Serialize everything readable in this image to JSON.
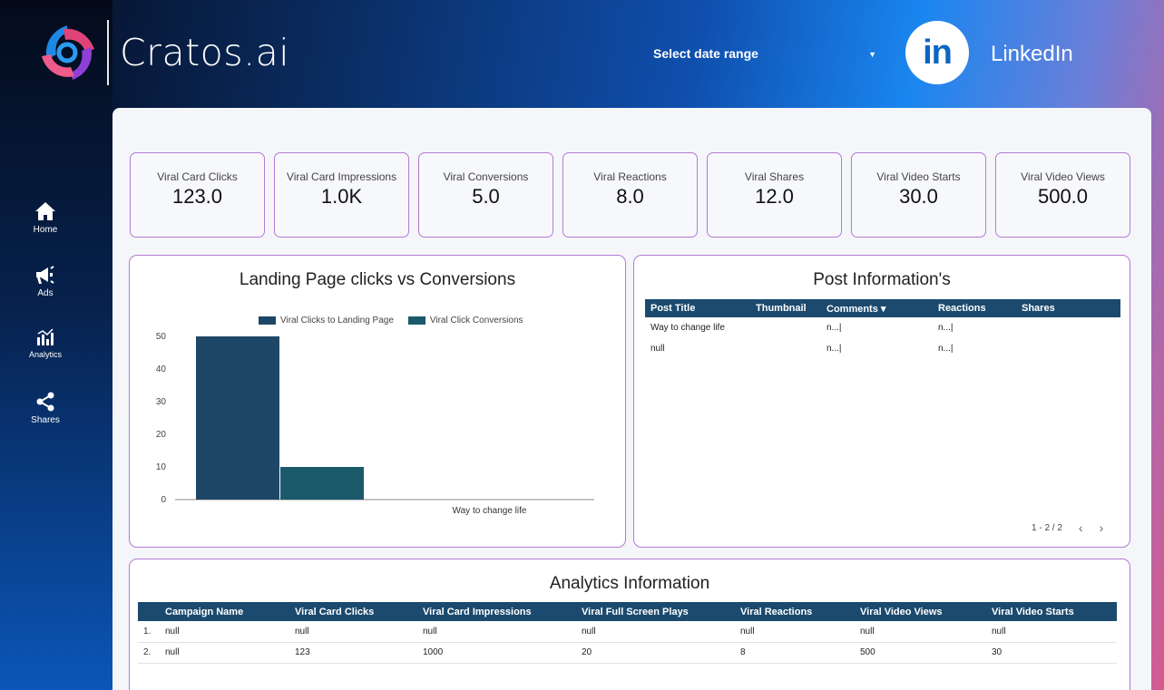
{
  "brand": {
    "name": "Cratos.ai"
  },
  "header": {
    "date_range_label": "Select date range",
    "platform_name": "LinkedIn",
    "platform_logo_text": "in"
  },
  "nav": [
    {
      "label": "Home",
      "icon": "home-icon"
    },
    {
      "label": "Ads",
      "icon": "megaphone-icon"
    },
    {
      "label": "Analytics",
      "icon": "analytics-icon"
    },
    {
      "label": "Shares",
      "icon": "share-icon"
    }
  ],
  "kpis": [
    {
      "label": "Viral Card Clicks",
      "value": "123.0"
    },
    {
      "label": "Viral Card Impressions",
      "value": "1.0K"
    },
    {
      "label": "Viral Conversions",
      "value": "5.0"
    },
    {
      "label": "Viral Reactions",
      "value": "8.0"
    },
    {
      "label": "Viral Shares",
      "value": "12.0"
    },
    {
      "label": "Viral Video Starts",
      "value": "30.0"
    },
    {
      "label": "Viral Video Views",
      "value": "500.0"
    }
  ],
  "chart_card": {
    "title": "Landing Page clicks vs Conversions"
  },
  "chart_data": {
    "type": "bar",
    "title": "Landing Page clicks vs Conversions",
    "categories": [
      "Way to change life"
    ],
    "series": [
      {
        "name": "Viral Clicks to Landing Page",
        "values": [
          50
        ],
        "color": "#1e4767"
      },
      {
        "name": "Viral Click Conversions",
        "values": [
          10
        ],
        "color": "#1b5a6b"
      }
    ],
    "yticks": [
      "0",
      "10",
      "20",
      "30",
      "40",
      "50"
    ],
    "ylim": [
      0,
      50
    ],
    "legend_position": "top",
    "grid": false
  },
  "posts": {
    "title": "Post Information's",
    "columns": [
      "Post Title",
      "Thumbnail",
      "Comments",
      "Reactions",
      "Shares"
    ],
    "sort_indicator": "▾",
    "rows": [
      [
        "Way to change life",
        "",
        "n...|",
        "n...|",
        ""
      ],
      [
        "null",
        "",
        "n...|",
        "n...|",
        ""
      ]
    ],
    "pagination": "1 - 2 / 2",
    "prev": "‹",
    "next": "›"
  },
  "analytics": {
    "title": "Analytics Information",
    "columns": [
      "",
      "Campaign Name",
      "Viral Card Clicks",
      "Viral Card Impressions",
      "Viral Full Screen Plays",
      "Viral Reactions",
      "Viral Video Views",
      "Viral Video Starts"
    ],
    "rows": [
      [
        "1.",
        "null",
        "null",
        "null",
        "null",
        "null",
        "null",
        "null"
      ],
      [
        "2.",
        "null",
        "123",
        "1000",
        "20",
        "8",
        "500",
        "30"
      ]
    ]
  }
}
